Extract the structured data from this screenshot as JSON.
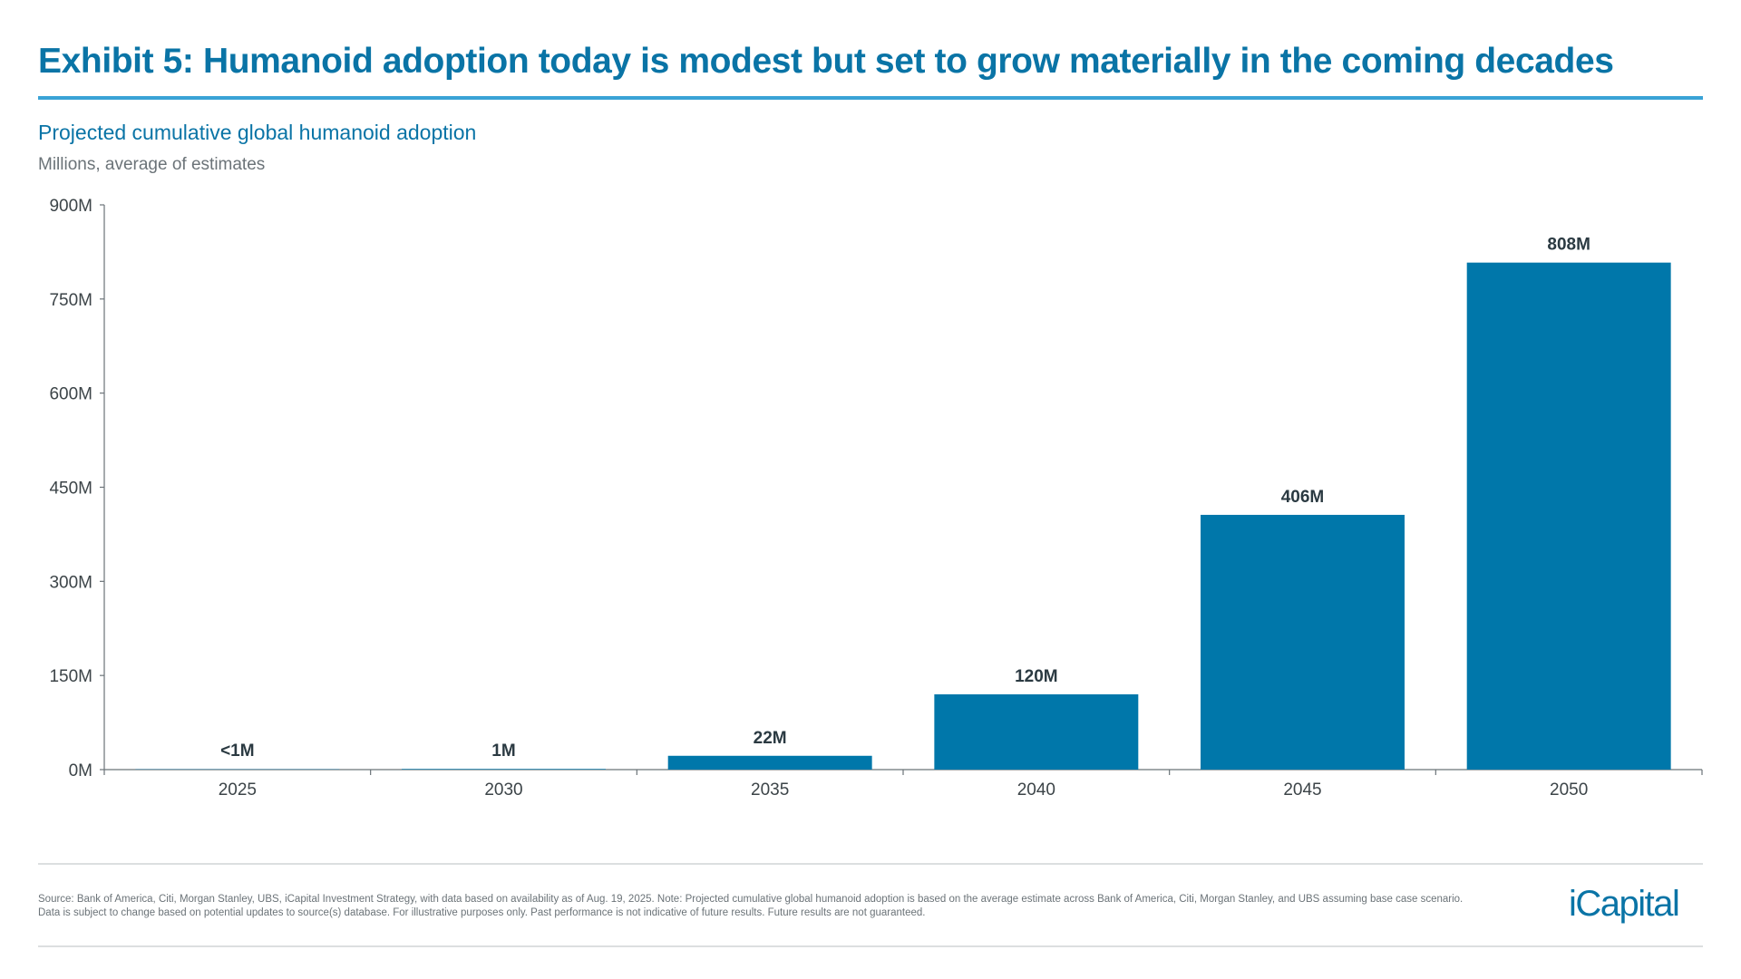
{
  "title": "Exhibit 5: Humanoid adoption today is modest but set to grow materially in the coming decades",
  "subtitle": "Projected cumulative global humanoid adoption",
  "units": "Millions, average of estimates",
  "footnote": {
    "line1": "Source: Bank of America, Citi, Morgan Stanley, UBS, iCapital Investment Strategy, with data based on availability as of Aug. 19, 2025. Note: Projected cumulative global humanoid adoption is based on the average estimate across Bank of America, Citi, Morgan Stanley, and UBS assuming base case scenario.",
    "line2": "Data is subject to change based on potential updates to source(s) database. For illustrative purposes only. Past performance is not indicative of future results. Future results are not guaranteed."
  },
  "logo": "iCapital",
  "colors": {
    "bar": "#0077aa",
    "title": "#0a74a6",
    "rule": "#3aa3d6"
  },
  "chart_data": {
    "type": "bar",
    "categories": [
      "2025",
      "2030",
      "2035",
      "2040",
      "2045",
      "2050"
    ],
    "values": [
      0.5,
      1,
      22,
      120,
      406,
      808
    ],
    "data_labels": [
      "<1M",
      "1M",
      "22M",
      "120M",
      "406M",
      "808M"
    ],
    "yticks": [
      0,
      150,
      300,
      450,
      600,
      750,
      900
    ],
    "ytick_labels": [
      "0M",
      "150M",
      "300M",
      "450M",
      "600M",
      "750M",
      "900M"
    ],
    "ylim": [
      0,
      900
    ],
    "grid": false,
    "xlabel": "",
    "ylabel": ""
  }
}
